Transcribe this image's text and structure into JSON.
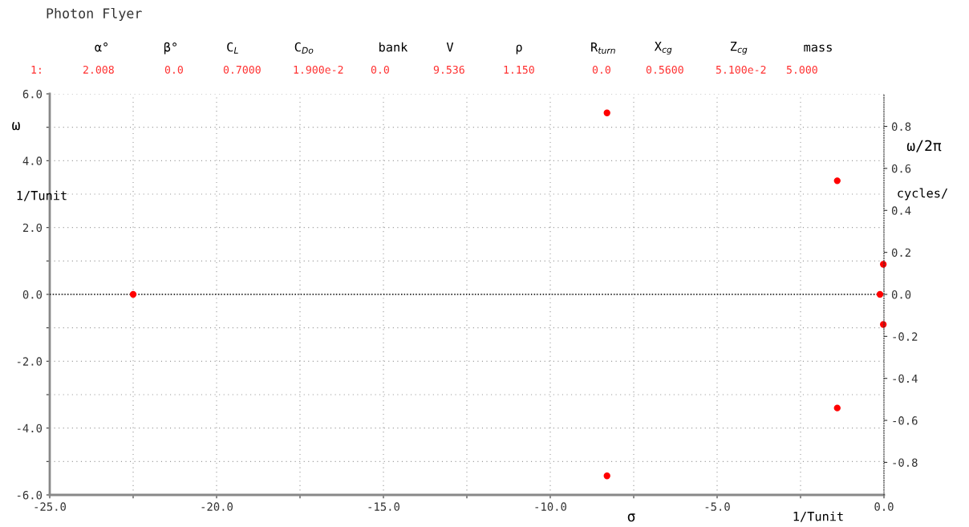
{
  "chart_data": {
    "type": "scatter",
    "title": "Photon Flyer",
    "xlabel": "σ",
    "ylabel": "ω",
    "y2label": "ω/2π",
    "annotations": [
      "1/Tunit",
      "1/Tunit",
      "cycles/",
      "α°",
      "β°",
      "C$_{L}$",
      "C$_{Do}$",
      "bank",
      "V",
      "ρ",
      "R$_{turn}$",
      "X$_{cg}$",
      "Z$_{cg}$",
      "mass",
      "1:",
      "2.008",
      "0.0",
      "0.7000",
      "1.900e-2",
      "0.0",
      "9.536",
      "1.150",
      "0.0",
      "0.5600",
      "5.100e-2",
      "5.000"
    ],
    "series": [
      {
        "color": "#ff0000",
        "x": [
          -22.5,
          -8.3,
          -8.3,
          -1.4,
          -1.4,
          -0.02,
          -0.02,
          -0.12
        ],
        "values": [
          0.0,
          5.43,
          -5.43,
          3.4,
          -3.4,
          0.9,
          -0.9,
          0.0
        ]
      }
    ],
    "marker": "circle",
    "grid": true,
    "xlim": [
      -25,
      0
    ],
    "xticks": [
      {
        "value": -25,
        "label": "-25.0"
      },
      {
        "value": -22.5,
        "label": null
      },
      {
        "value": -20,
        "label": "-20.0"
      },
      {
        "value": -17.5,
        "label": null
      },
      {
        "value": -15,
        "label": "-15.0"
      },
      {
        "value": -12.5,
        "label": null
      },
      {
        "value": -10,
        "label": "-10.0"
      },
      {
        "value": -7.5,
        "label": null
      },
      {
        "value": -5,
        "label": "-5.0"
      },
      {
        "value": -2.5,
        "label": null
      },
      {
        "value": 0,
        "label": "0.0"
      }
    ],
    "ylim": [
      -6,
      6
    ],
    "yticks": [
      {
        "value": -6,
        "label": "-6.0"
      },
      {
        "value": -5,
        "label": null
      },
      {
        "value": -4,
        "label": "-4.0"
      },
      {
        "value": -3,
        "label": null
      },
      {
        "value": -2,
        "label": "-2.0"
      },
      {
        "value": -1,
        "label": null
      },
      {
        "value": 0,
        "label": "0.0"
      },
      {
        "value": 1,
        "label": null
      },
      {
        "value": 2,
        "label": "2.0"
      },
      {
        "value": 3,
        "label": null
      },
      {
        "value": 4,
        "label": "4.0"
      },
      {
        "value": 5,
        "label": null
      },
      {
        "value": 6,
        "label": "6.0"
      }
    ],
    "y2lim": [
      -0.955,
      0.955
    ],
    "y2ticks": [
      {
        "value": -0.8,
        "label": "-0.8"
      },
      {
        "value": -0.6,
        "label": "-0.6"
      },
      {
        "value": -0.4,
        "label": "-0.4"
      },
      {
        "value": -0.2,
        "label": "-0.2"
      },
      {
        "value": 0,
        "label": "0.0"
      },
      {
        "value": 0.2,
        "label": "0.2"
      },
      {
        "value": 0.4,
        "label": "0.4"
      },
      {
        "value": 0.6,
        "label": "0.6"
      },
      {
        "value": 0.8,
        "label": "0.8"
      }
    ],
    "ref_lines": [
      {
        "axis": "y",
        "value": 0,
        "color": "#000000",
        "line_style": "dotted"
      }
    ]
  }
}
